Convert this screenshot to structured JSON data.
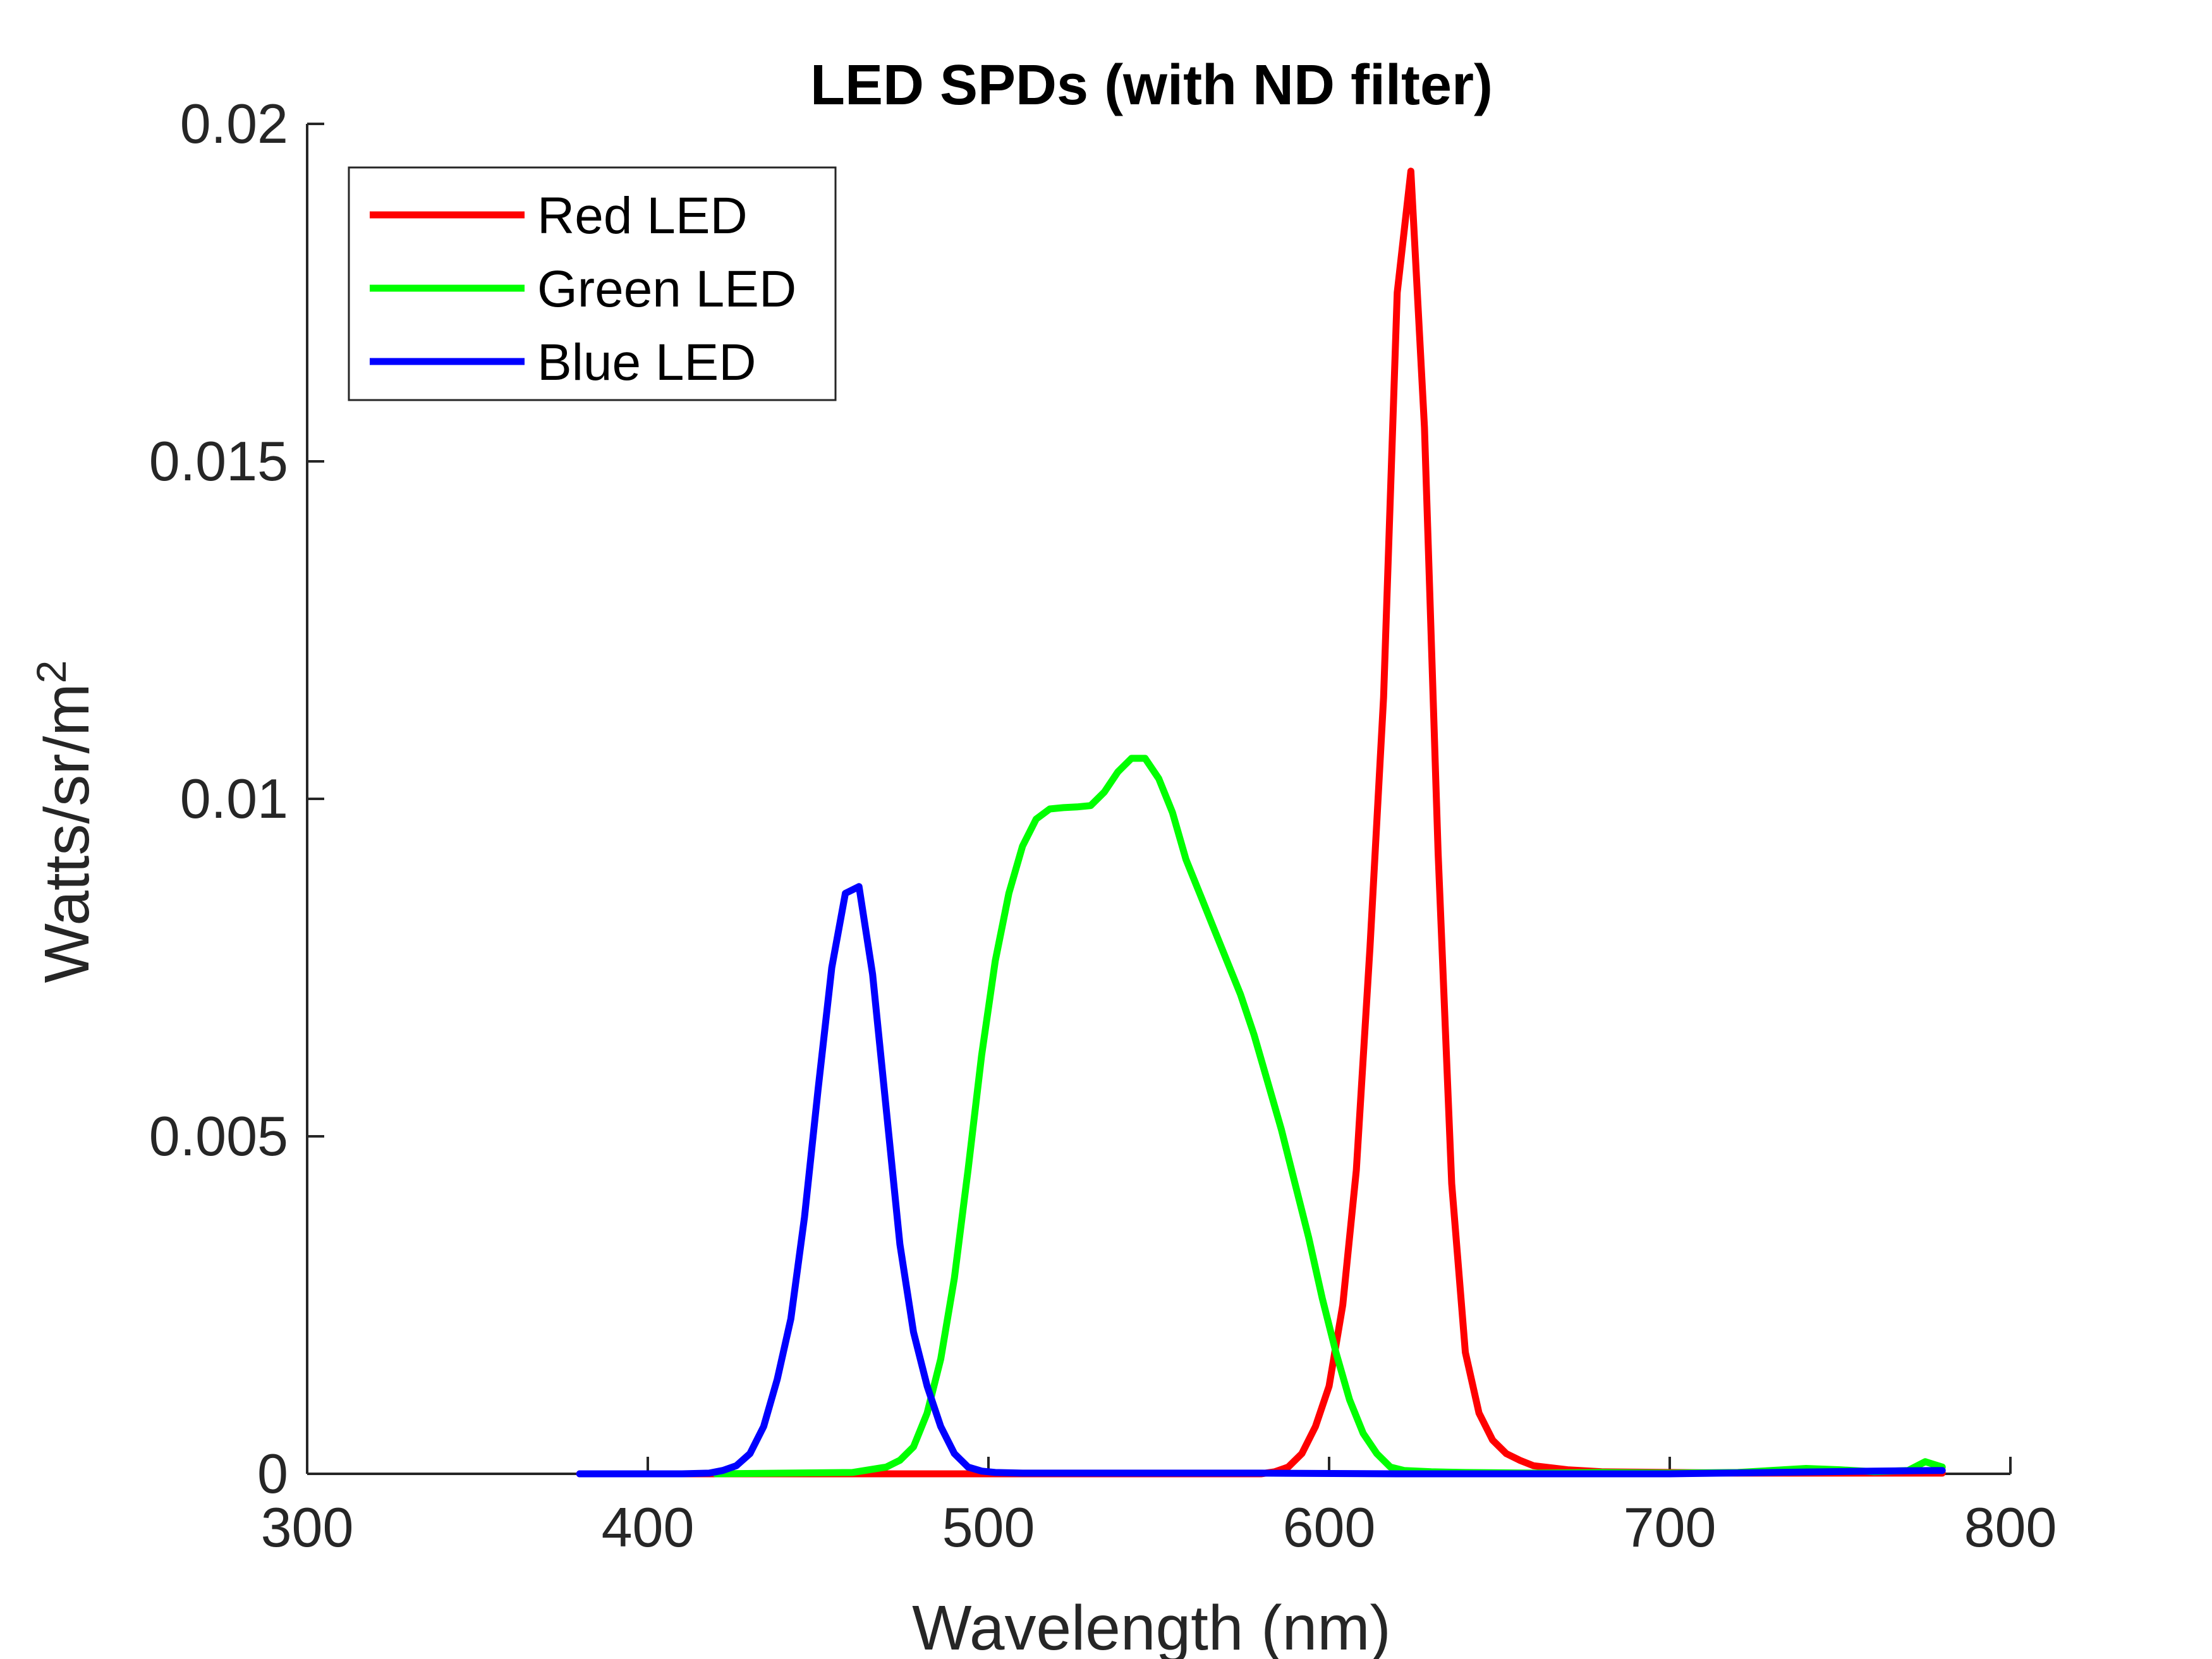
{
  "chart_data": {
    "type": "line",
    "title": "LED SPDs (with ND filter)",
    "xlabel": "Wavelength (nm)",
    "ylabel": "Watts/sr/m",
    "ylabel_superscript": "2",
    "xlim": [
      300,
      800
    ],
    "ylim": [
      0,
      0.02
    ],
    "xticks": [
      300,
      400,
      500,
      600,
      700,
      800
    ],
    "xtick_labels": [
      "300",
      "400",
      "500",
      "600",
      "700",
      "800"
    ],
    "yticks": [
      0,
      0.005,
      0.01,
      0.015,
      0.02
    ],
    "ytick_labels": [
      "0",
      "0.005",
      "0.01",
      "0.015",
      "0.02"
    ],
    "grid": false,
    "legend_position": "top-left",
    "series": [
      {
        "name": "Red LED",
        "color": "#ff0000",
        "x": [
          380,
          470,
          500,
          560,
          580,
          584,
          588,
          592,
          596,
          600,
          604,
          608,
          612,
          616,
          620,
          624,
          628,
          632,
          636,
          640,
          644,
          648,
          652,
          656,
          660,
          670,
          680,
          700,
          720,
          740,
          760,
          780
        ],
        "y": [
          0,
          0,
          0,
          0,
          0,
          3e-05,
          0.0001,
          0.0003,
          0.0007,
          0.0013,
          0.0025,
          0.0045,
          0.0078,
          0.0115,
          0.0175,
          0.0193,
          0.0155,
          0.0092,
          0.0043,
          0.0018,
          0.0009,
          0.0005,
          0.0003,
          0.0002,
          0.00012,
          6e-05,
          3e-05,
          2e-05,
          1e-05,
          1e-05,
          1e-05,
          1e-05
        ]
      },
      {
        "name": "Green LED",
        "color": "#00ff00",
        "x": [
          420,
          460,
          470,
          474,
          478,
          482,
          486,
          490,
          494,
          498,
          502,
          506,
          510,
          514,
          518,
          522,
          526,
          530,
          534,
          538,
          542,
          546,
          550,
          554,
          558,
          562,
          566,
          570,
          574,
          578,
          582,
          586,
          590,
          594,
          598,
          602,
          606,
          610,
          614,
          618,
          622,
          630,
          640,
          660,
          680,
          700,
          720,
          740,
          750,
          760,
          770,
          775,
          780
        ],
        "y": [
          0,
          2e-05,
          0.0001,
          0.0002,
          0.0004,
          0.0009,
          0.0017,
          0.0029,
          0.0045,
          0.0062,
          0.0076,
          0.0086,
          0.0093,
          0.0097,
          0.00985,
          0.00987,
          0.00988,
          0.0099,
          0.0101,
          0.0104,
          0.0106,
          0.0106,
          0.0103,
          0.0098,
          0.0091,
          0.0086,
          0.0081,
          0.0076,
          0.0071,
          0.0065,
          0.0058,
          0.0051,
          0.0043,
          0.0035,
          0.0026,
          0.0018,
          0.0011,
          0.0006,
          0.0003,
          0.0001,
          5e-05,
          3e-05,
          2e-05,
          1e-05,
          2e-05,
          1e-05,
          2e-05,
          8e-05,
          6e-05,
          3e-05,
          5e-05,
          0.00018,
          0.0001
        ]
      },
      {
        "name": "Blue LED",
        "color": "#0000ff",
        "x": [
          380,
          410,
          418,
          422,
          426,
          430,
          434,
          438,
          442,
          446,
          450,
          454,
          458,
          462,
          466,
          470,
          474,
          478,
          482,
          486,
          490,
          494,
          498,
          502,
          510,
          540,
          580,
          620,
          700,
          760,
          780
        ],
        "y": [
          0,
          0,
          1e-05,
          5e-05,
          0.00012,
          0.0003,
          0.0007,
          0.0014,
          0.0023,
          0.0038,
          0.0057,
          0.0075,
          0.0086,
          0.0087,
          0.0074,
          0.0054,
          0.0034,
          0.0021,
          0.0013,
          0.0007,
          0.0003,
          0.0001,
          4e-05,
          2e-05,
          1e-05,
          1e-05,
          1e-05,
          0,
          0,
          4e-05,
          5e-05
        ]
      }
    ]
  }
}
